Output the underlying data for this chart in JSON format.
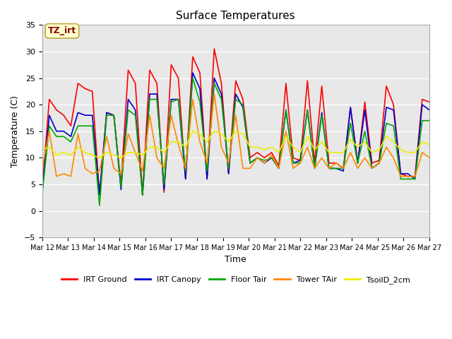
{
  "title": "Surface Temperatures",
  "ylabel": "Temperature (C)",
  "xlabel": "Time",
  "ylim": [
    -5,
    35
  ],
  "annotation_text": "TZ_irt",
  "annotation_box_color": "#ffffcc",
  "annotation_box_edgecolor": "#bbaa44",
  "annotation_text_color": "#880000",
  "figure_bg_color": "#ffffff",
  "plot_bg_color": "#e8e8e8",
  "legend_entries": [
    "IRT Ground",
    "IRT Canopy",
    "Floor Tair",
    "Tower TAir",
    "TsoilD_2cm"
  ],
  "legend_colors": [
    "#ff0000",
    "#0000cc",
    "#00aa00",
    "#ff8800",
    "#eeee00"
  ],
  "line_colors": [
    "#ff0000",
    "#0000cc",
    "#00aa00",
    "#ff8800",
    "#eeee00"
  ],
  "line_names": [
    "IRT Ground",
    "IRT Canopy",
    "Floor Tair",
    "Tower TAir",
    "TsoilD_2cm"
  ],
  "x_tick_labels": [
    "Mar 12",
    "Mar 13",
    "Mar 14",
    "Mar 15",
    "Mar 16",
    "Mar 17",
    "Mar 18",
    "Mar 19",
    "Mar 20",
    "Mar 21",
    "Mar 22",
    "Mar 23",
    "Mar 24",
    "Mar 25",
    "Mar 26",
    "Mar 27"
  ],
  "yticks": [
    -5,
    0,
    5,
    10,
    15,
    20,
    25,
    30,
    35
  ],
  "series": {
    "IRT Ground": [
      4,
      21,
      19,
      18,
      16,
      24,
      23,
      22.5,
      3,
      18.5,
      18,
      5,
      26.5,
      24,
      3,
      26.5,
      24,
      3.5,
      27.5,
      25,
      6,
      29,
      26,
      6,
      30.5,
      24,
      7,
      24.5,
      21,
      10,
      11,
      10,
      11,
      8.5,
      24,
      10,
      9.5,
      24.5,
      9,
      23.5,
      9,
      9,
      8,
      19.5,
      9,
      20.5,
      9,
      9.5,
      23.5,
      20,
      7,
      6.5,
      6.5,
      21,
      20.5
    ],
    "IRT Canopy": [
      3.5,
      18,
      15,
      15,
      14,
      18.5,
      18,
      18,
      3,
      18.5,
      18,
      4,
      21,
      19,
      3,
      22,
      22,
      4,
      21,
      21,
      6,
      26,
      23,
      6,
      25,
      22,
      7,
      22,
      19.5,
      9,
      10,
      9,
      10,
      8,
      19,
      9,
      9.5,
      19,
      8,
      18.5,
      8,
      8,
      7.5,
      19.5,
      9,
      19,
      8,
      9,
      19.5,
      19,
      7,
      7,
      6,
      20,
      19
    ],
    "Floor Tair": [
      3,
      16,
      14,
      14,
      13,
      16,
      16,
      16,
      1,
      18,
      18,
      4.5,
      19,
      18,
      3,
      21,
      21,
      5,
      20.5,
      21,
      7.5,
      25,
      20.5,
      7.5,
      24,
      21,
      8,
      21,
      20,
      9,
      10,
      9.5,
      10,
      8,
      19,
      9,
      9,
      19,
      8,
      18,
      8,
      8,
      8,
      16.5,
      9,
      15,
      8,
      9,
      16.5,
      16,
      6,
      6,
      6,
      17,
      17
    ],
    "Tower TAir": [
      8,
      15,
      6.5,
      7,
      6.5,
      14.5,
      8,
      7,
      7.5,
      14,
      8,
      7,
      14.5,
      11,
      7.5,
      18,
      10,
      8,
      18,
      12.5,
      8,
      21,
      13,
      9,
      22,
      12,
      9,
      18,
      8,
      8,
      10,
      9,
      10.5,
      8,
      15,
      8,
      9,
      12,
      8,
      10,
      8,
      9,
      8,
      11,
      8,
      10,
      8,
      9,
      12,
      10,
      6.5,
      6.5,
      6.5,
      11,
      10
    ],
    "TsoilD_2cm": [
      11.5,
      12,
      10.5,
      11,
      10.5,
      12,
      11,
      10.5,
      10,
      11,
      10.5,
      10,
      11,
      11,
      10.5,
      12,
      12,
      11,
      13,
      13,
      12,
      15,
      14.5,
      13,
      15,
      14.5,
      13,
      15,
      14.5,
      12,
      12,
      11.5,
      12,
      11,
      14,
      12,
      11,
      14,
      11.5,
      13,
      11,
      11,
      11,
      13.5,
      12,
      13,
      11,
      11.5,
      14,
      13,
      11.5,
      11,
      11,
      13,
      12.5
    ]
  }
}
